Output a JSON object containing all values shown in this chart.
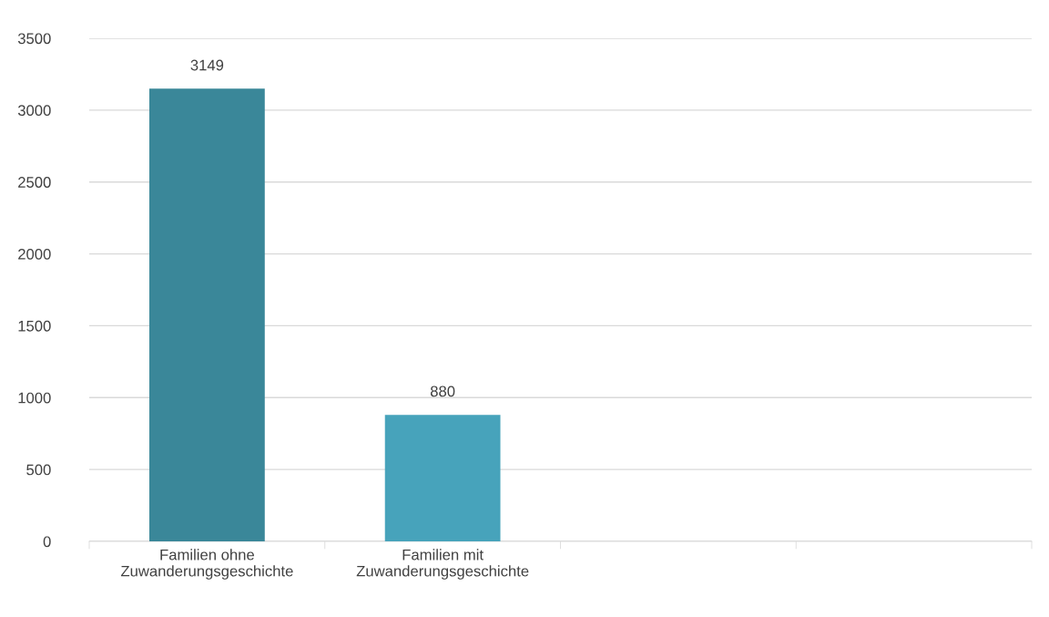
{
  "chart_data": {
    "type": "bar",
    "categories": [
      "Familien ohne\nZuwanderungsgeschichte",
      "Familien mit\nZuwanderungsgeschichte",
      null,
      null
    ],
    "values": [
      3149,
      880,
      null,
      null
    ],
    "colors": [
      "#3a8799",
      "#47a3bb",
      "#47a3bb",
      "#47a3bb"
    ],
    "ylim": [
      0,
      3500
    ],
    "yticks": [
      0,
      500,
      1000,
      1500,
      2000,
      2500,
      3000,
      3500
    ],
    "grid": "y",
    "data_labels": true
  }
}
